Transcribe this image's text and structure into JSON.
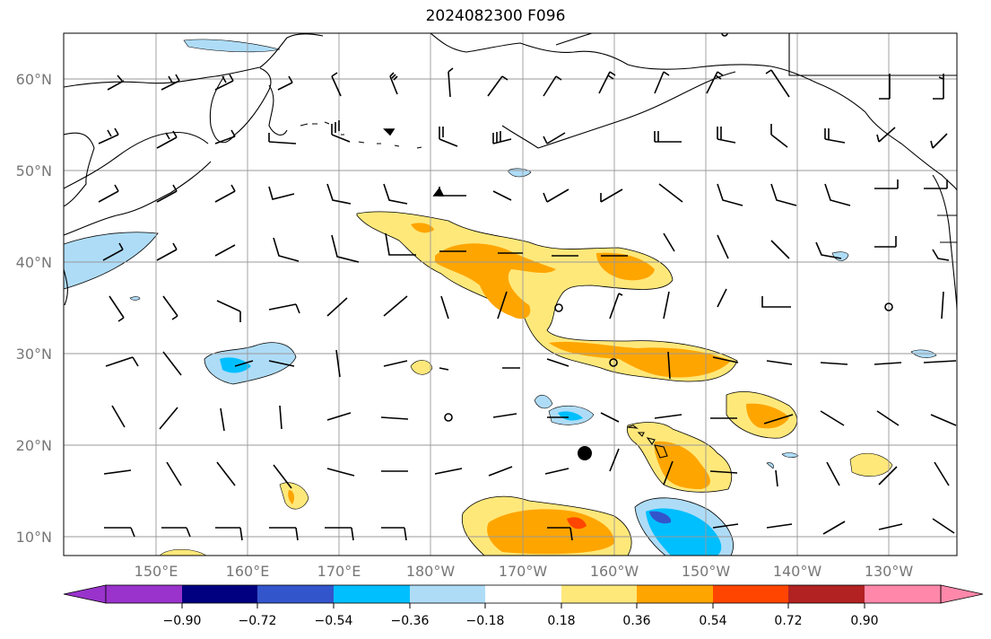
{
  "title": "2024082300 F096",
  "lat_labels": [
    "60°N",
    "50°N",
    "40°N",
    "30°N",
    "20°N",
    "10°N"
  ],
  "lon_labels": [
    "150°E",
    "160°E",
    "170°E",
    "180°W",
    "170°W",
    "160°W",
    "150°W",
    "140°W",
    "130°W"
  ],
  "colorbar": {
    "colors": [
      "#9933cc",
      "#000080",
      "#3355cc",
      "#00bfff",
      "#aedcf7",
      "#ffffff",
      "#ffe87a",
      "#ffa500",
      "#ff4500",
      "#b22222",
      "#ff88aa"
    ],
    "tick_labels": [
      "−0.90",
      "−0.72",
      "−0.54",
      "−0.36",
      "−0.18",
      "0.18",
      "0.36",
      "0.54",
      "0.72",
      "0.90"
    ]
  },
  "colors": {
    "land_line": "#000000",
    "grid": "#999999",
    "positive_light": "#ffe87a",
    "positive_mid": "#ffa500",
    "positive_high": "#ff4500",
    "negative_light": "#aedcf7",
    "negative_mid": "#00bfff",
    "negative_high": "#3355cc"
  },
  "marker": {
    "name": "storm-center",
    "lat": 19,
    "lon": -164
  }
}
